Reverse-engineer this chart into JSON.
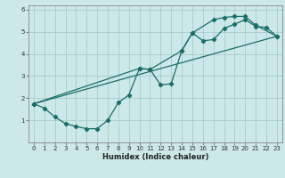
{
  "title": "",
  "xlabel": "Humidex (Indice chaleur)",
  "bg_color": "#cce8e8",
  "grid_color": "#aacccc",
  "line_color": "#1a6e6a",
  "xlim": [
    -0.5,
    23.5
  ],
  "ylim": [
    0,
    6.2
  ],
  "xticks": [
    0,
    1,
    2,
    3,
    4,
    5,
    6,
    7,
    8,
    9,
    10,
    11,
    12,
    13,
    14,
    15,
    16,
    17,
    18,
    19,
    20,
    21,
    22,
    23
  ],
  "yticks": [
    1,
    2,
    3,
    4,
    5,
    6
  ],
  "curve1_x": [
    0,
    1,
    2,
    3,
    4,
    5,
    6,
    7,
    8,
    9,
    10,
    11,
    12,
    13,
    14,
    15,
    16,
    17,
    18,
    19,
    20,
    21,
    22,
    23
  ],
  "curve1_y": [
    1.75,
    1.55,
    1.15,
    0.85,
    0.72,
    0.62,
    0.62,
    1.0,
    1.8,
    2.15,
    3.35,
    3.3,
    2.6,
    2.65,
    4.15,
    4.95,
    4.6,
    4.65,
    5.15,
    5.35,
    5.55,
    5.25,
    5.2,
    4.8
  ],
  "curve2_x": [
    0,
    23
  ],
  "curve2_y": [
    1.75,
    4.8
  ],
  "curve3_x": [
    0,
    10,
    11,
    14,
    15,
    17,
    18,
    19,
    20,
    21,
    23
  ],
  "curve3_y": [
    1.75,
    3.35,
    3.3,
    4.15,
    4.95,
    5.55,
    5.65,
    5.7,
    5.7,
    5.3,
    4.8
  ]
}
